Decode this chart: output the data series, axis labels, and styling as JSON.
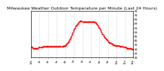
{
  "title": "Milwaukee Weather Outdoor Temperature per Minute (Last 24 Hours)",
  "title_fontsize": 4.5,
  "line_color": "red",
  "line_style": "--",
  "line_width": 0.8,
  "marker": ".",
  "marker_size": 1.0,
  "background_color": "#ffffff",
  "ylim": [
    20,
    75
  ],
  "yticks": [
    20,
    25,
    30,
    35,
    40,
    45,
    50,
    55,
    60,
    65,
    70,
    75
  ],
  "ytick_fontsize": 3.0,
  "xtick_fontsize": 2.8,
  "grid_color": "#aaaaaa",
  "grid_style": ":",
  "grid_linewidth": 0.4,
  "y_values": [
    32,
    32,
    32,
    31,
    31,
    31,
    31,
    31,
    31,
    31,
    31,
    32,
    32,
    32,
    32,
    32,
    32,
    33,
    33,
    33,
    33,
    33,
    33,
    33,
    33,
    33,
    33,
    33,
    33,
    33,
    33,
    33,
    33,
    33,
    33,
    33,
    33,
    33,
    33,
    33,
    33,
    33,
    33,
    33,
    33,
    33,
    34,
    34,
    34,
    35,
    36,
    37,
    38,
    39,
    41,
    42,
    44,
    46,
    48,
    50,
    52,
    54,
    55,
    57,
    58,
    59,
    60,
    61,
    62,
    63,
    63,
    63,
    62,
    62,
    62,
    62,
    62,
    62,
    62,
    62,
    62,
    62,
    62,
    62,
    62,
    62,
    62,
    62,
    62,
    62,
    61,
    61,
    60,
    59,
    58,
    56,
    55,
    54,
    52,
    50,
    48,
    47,
    45,
    44,
    43,
    42,
    41,
    40,
    39,
    38,
    37,
    37,
    37,
    36,
    36,
    35,
    35,
    35,
    34,
    34,
    34,
    34,
    34,
    34,
    34,
    33,
    33,
    33,
    33,
    33,
    32,
    32,
    32,
    32,
    31,
    31,
    31,
    31,
    31,
    31,
    31,
    30,
    30,
    30
  ],
  "xtick_positions": [
    0,
    12,
    24,
    36,
    48,
    60,
    72,
    84,
    96,
    108,
    120,
    132,
    143
  ],
  "xtick_labels": [
    "12a",
    "1a",
    "2a",
    "3a",
    "4a",
    "5a",
    "6a",
    "7a",
    "8a",
    "9a",
    "10a",
    "11a",
    "12p"
  ]
}
